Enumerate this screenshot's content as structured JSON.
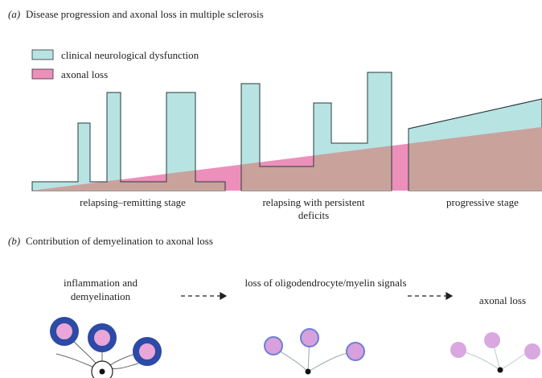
{
  "panel_a": {
    "label": "(a)",
    "title": "Disease progression and axonal loss in multiple sclerosis",
    "legend": [
      "clinical neurological dysfunction",
      "axonal loss"
    ],
    "stages": [
      [
        "relapsing–remitting stage"
      ],
      [
        "relapsing with persistent",
        "deficits"
      ],
      [
        "progressive stage"
      ]
    ]
  },
  "panel_b": {
    "label": "(b)",
    "title": "Contribution of demyelination to axonal loss",
    "steps": [
      [
        "inflammation and",
        "demyelination"
      ],
      [
        "loss of oligodendrocyte/myelin signals"
      ],
      [
        "axonal loss"
      ]
    ]
  }
}
